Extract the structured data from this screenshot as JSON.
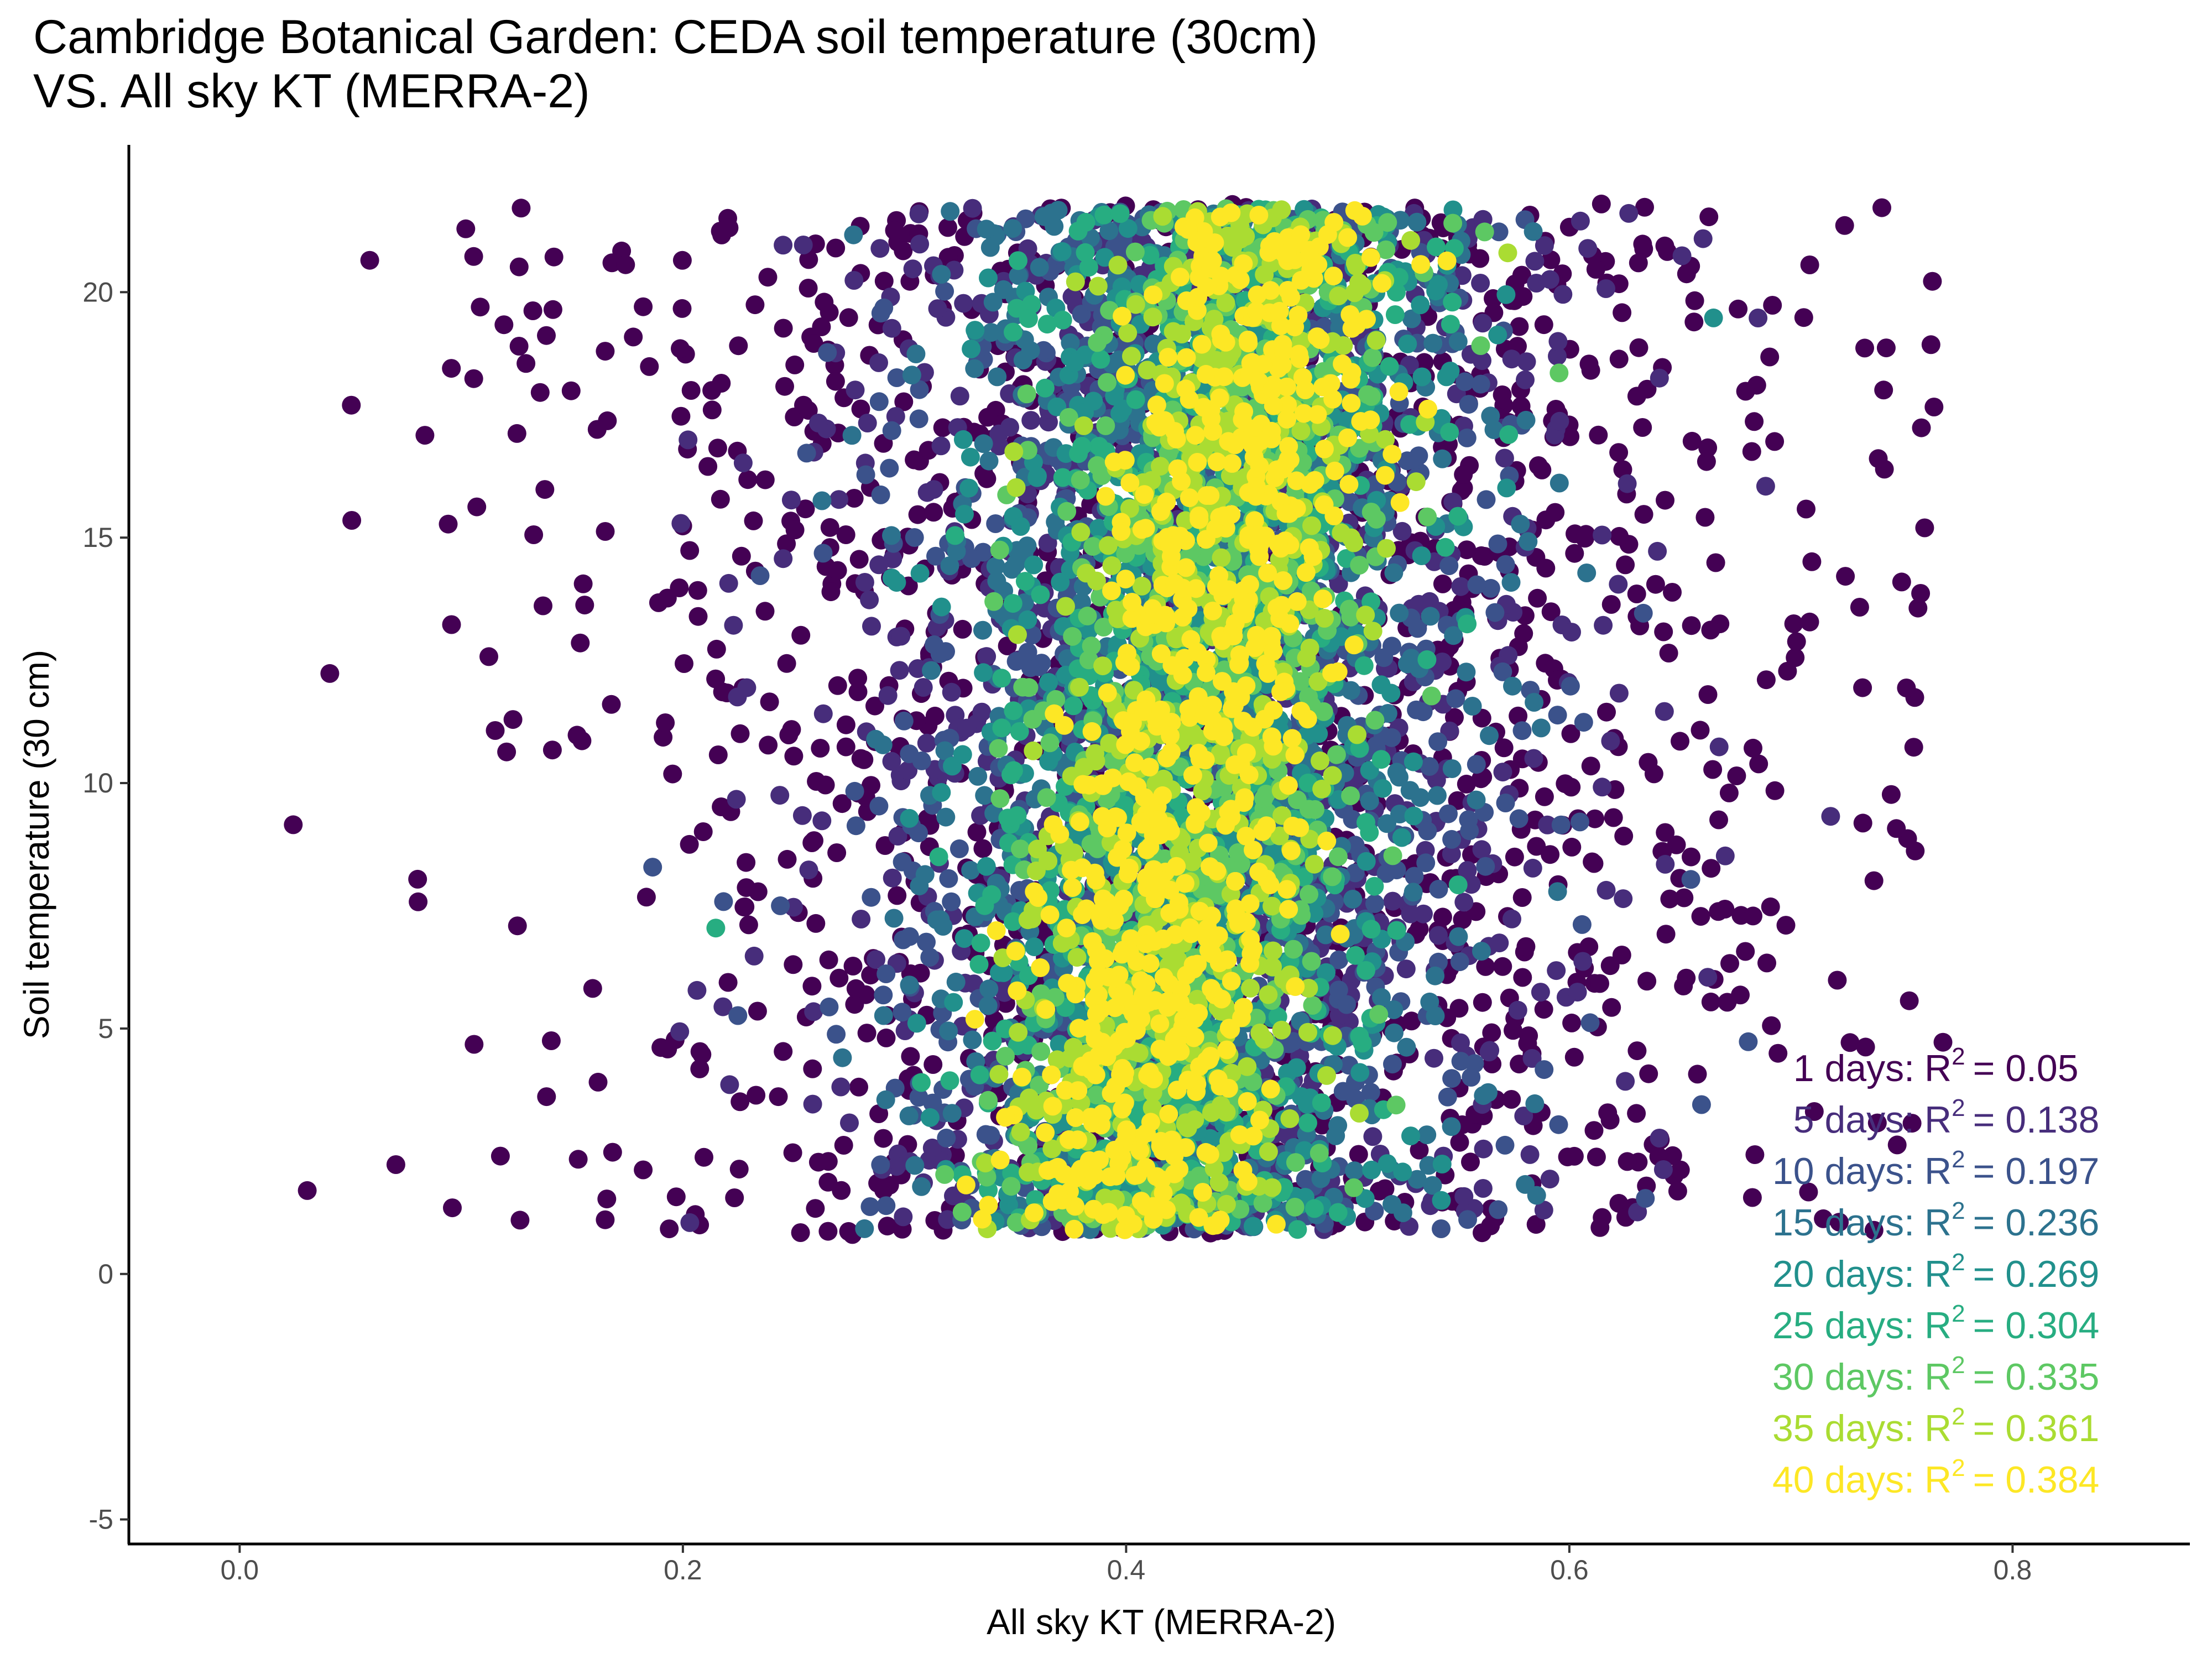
{
  "chart_data": {
    "type": "scatter",
    "title_line1": "Cambridge Botanical Garden: CEDA soil temperature (30cm)",
    "title_line2": "VS. All sky KT (MERRA-2)",
    "xlabel": "All sky KT (MERRA-2)",
    "ylabel": "Soil temperature (30 cm)",
    "xlim": [
      -0.05,
      0.88
    ],
    "ylim": [
      -5.5,
      23
    ],
    "x_ticks": [
      "0.0",
      "0.2",
      "0.4",
      "0.6",
      "0.8"
    ],
    "y_ticks": [
      "-5",
      "0",
      "5",
      "10",
      "15",
      "20"
    ],
    "grid": false,
    "series": [
      {
        "days": 1,
        "color": "#440154",
        "label": "1 days:",
        "r2": "0.05",
        "center_x": 0.43,
        "spread_x": 0.145,
        "y_range": [
          0.8,
          21.8
        ]
      },
      {
        "days": 5,
        "color": "#472D7B",
        "label": "5 days:",
        "r2": "0.138",
        "center_x": 0.43,
        "spread_x": 0.115,
        "y_range": [
          0.9,
          21.8
        ]
      },
      {
        "days": 10,
        "color": "#3B528B",
        "label": "10 days:",
        "r2": "0.197",
        "center_x": 0.43,
        "spread_x": 0.095,
        "y_range": [
          0.9,
          21.7
        ]
      },
      {
        "days": 15,
        "color": "#2C728E",
        "label": "15 days:",
        "r2": "0.236",
        "center_x": 0.43,
        "spread_x": 0.08,
        "y_range": [
          0.9,
          21.7
        ]
      },
      {
        "days": 20,
        "color": "#21908C",
        "label": "20 days:",
        "r2": "0.269",
        "center_x": 0.43,
        "spread_x": 0.068,
        "y_range": [
          0.9,
          21.7
        ]
      },
      {
        "days": 25,
        "color": "#27AD81",
        "label": "25 days:",
        "r2": "0.304",
        "center_x": 0.43,
        "spread_x": 0.058,
        "y_range": [
          0.9,
          21.7
        ]
      },
      {
        "days": 30,
        "color": "#5DC863",
        "label": "30 days:",
        "r2": "0.335",
        "center_x": 0.43,
        "spread_x": 0.05,
        "y_range": [
          0.9,
          21.7
        ]
      },
      {
        "days": 35,
        "color": "#AADC32",
        "label": "35 days:",
        "r2": "0.361",
        "center_x": 0.43,
        "spread_x": 0.044,
        "y_range": [
          0.9,
          21.7
        ]
      },
      {
        "days": 40,
        "color": "#FDE725",
        "label": "40 days:",
        "r2": "0.384",
        "center_x": 0.43,
        "spread_x": 0.038,
        "y_range": [
          0.9,
          21.7
        ]
      }
    ],
    "annotation_r2_prefix": "R",
    "annotation_r2_sup": "2",
    "annotation_eq": "= "
  }
}
